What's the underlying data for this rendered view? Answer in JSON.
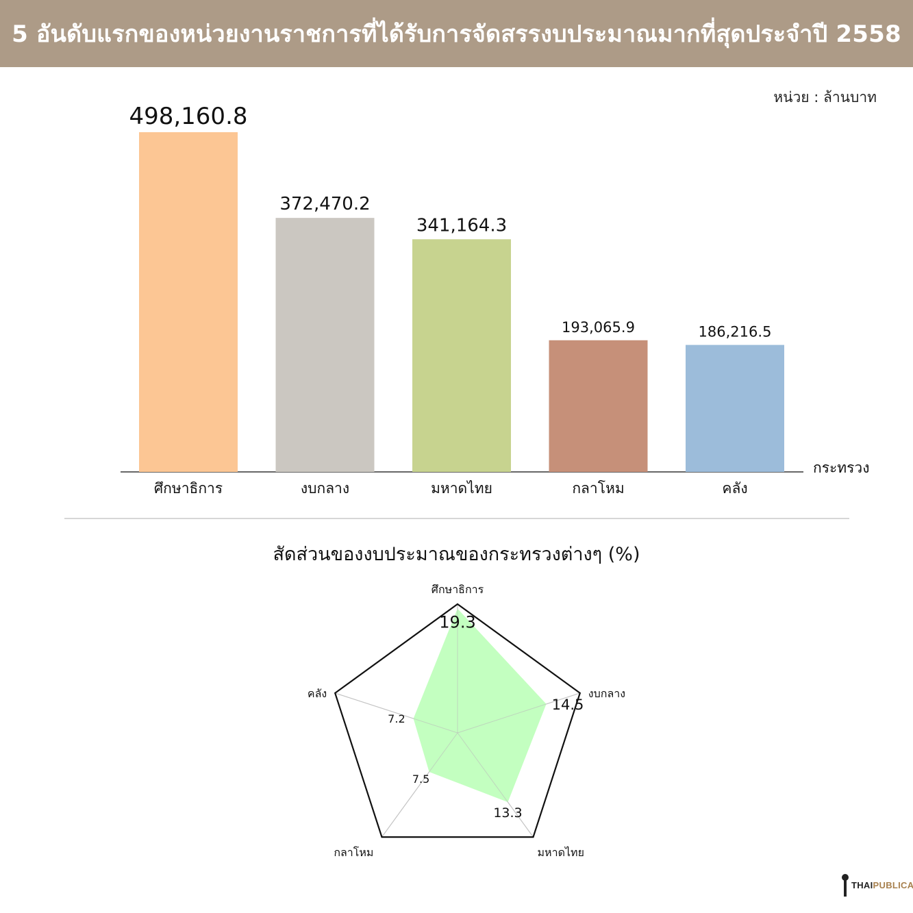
{
  "banner": {
    "title": "5  อันดับแรกของหน่วยงานราชการที่ได้รับการจัดสรรงบประมาณมากที่สุดประจำปี 2558"
  },
  "unit_label": "หน่วย : ล้านบาท",
  "radar_title": "สัดส่วนของงบประมาณของกระทรวงต่างๆ (%)",
  "logo": {
    "part1": "THAI",
    "part2": "PUBLICA"
  },
  "chart_data": [
    {
      "type": "bar",
      "categories": [
        "ศึกษาธิการ",
        "งบกลาง",
        "มหาดไทย",
        "กลาโหม",
        "คลัง"
      ],
      "values": [
        498160.8,
        372470.2,
        341164.3,
        193065.9,
        186216.5
      ],
      "value_labels": [
        "498,160.8",
        "372,470.2",
        "341,164.3",
        "193,065.9",
        "186,216.5"
      ],
      "colors": [
        "#fcc694",
        "#cbc7c1",
        "#c7d38f",
        "#c69079",
        "#9cbcda"
      ],
      "xlabel": "กระทรวง",
      "ylabel": "",
      "ylim": [
        0,
        500000
      ],
      "grid": false
    },
    {
      "type": "radar",
      "categories": [
        "ศึกษาธิการ",
        "งบกลาง",
        "มหาดไทย",
        "กลาโหม",
        "คลัง"
      ],
      "values": [
        19.3,
        14.5,
        13.3,
        7.5,
        7.2
      ],
      "value_labels": [
        "19.3",
        "14.5",
        "13.3",
        "7.5",
        "7.2"
      ],
      "rmax": 20,
      "fill_color": "#c0ffbd",
      "outline_color": "#111111"
    }
  ]
}
